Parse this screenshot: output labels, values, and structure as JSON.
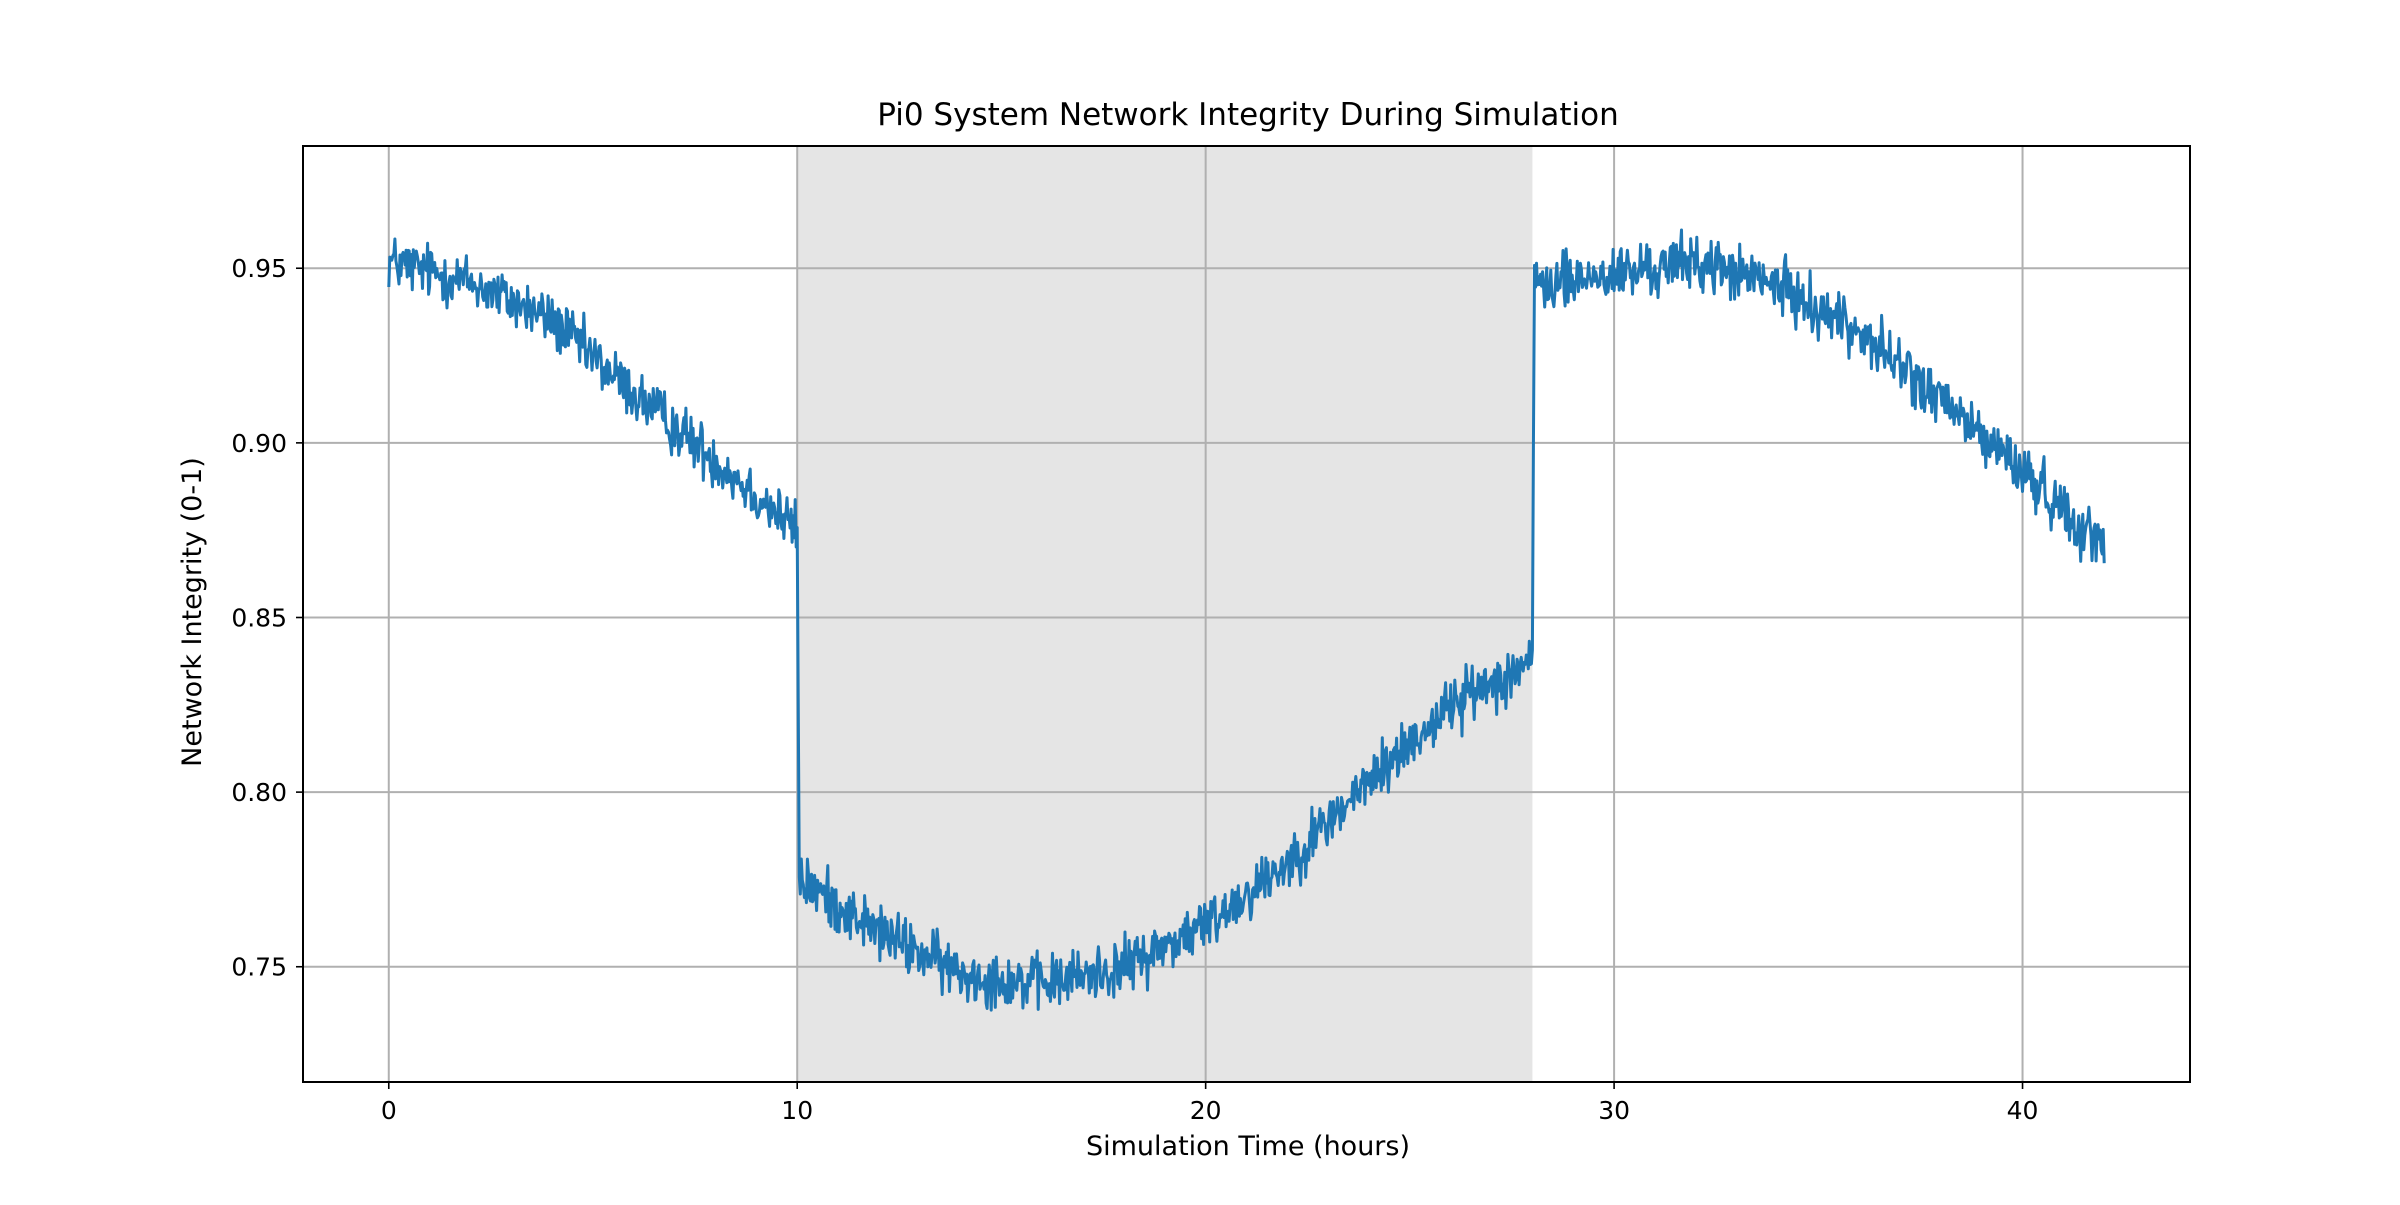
{
  "chart_data": {
    "type": "line",
    "title": "Pi0 System Network Integrity During Simulation",
    "xlabel": "Simulation Time (hours)",
    "ylabel": "Network Integrity (0-1)",
    "xlim": [
      -2.1,
      44.1
    ],
    "ylim": [
      0.717,
      0.985
    ],
    "xticks": [
      0,
      10,
      20,
      30,
      40
    ],
    "yticks": [
      0.75,
      0.8,
      0.85,
      0.9,
      0.95
    ],
    "xtick_labels": [
      "0",
      "10",
      "20",
      "30",
      "40"
    ],
    "ytick_labels": [
      "0.75",
      "0.80",
      "0.85",
      "0.90",
      "0.95"
    ],
    "grid": true,
    "shaded_region": {
      "x_start": 10,
      "x_end": 28,
      "color": "#e5e5e5"
    },
    "series": [
      {
        "color": "#1f77b4",
        "noise_amplitude": 0.008,
        "trend": [
          [
            0,
            0.952
          ],
          [
            2,
            0.946
          ],
          [
            4,
            0.935
          ],
          [
            6,
            0.914
          ],
          [
            8,
            0.895
          ],
          [
            9.5,
            0.88
          ],
          [
            10,
            0.875
          ],
          [
            10.05,
            0.775
          ],
          [
            12,
            0.76
          ],
          [
            14,
            0.748
          ],
          [
            16,
            0.745
          ],
          [
            18,
            0.75
          ],
          [
            20,
            0.762
          ],
          [
            22,
            0.78
          ],
          [
            24,
            0.803
          ],
          [
            26,
            0.825
          ],
          [
            28,
            0.838
          ],
          [
            28.05,
            0.945
          ],
          [
            30,
            0.948
          ],
          [
            32,
            0.952
          ],
          [
            34,
            0.945
          ],
          [
            36,
            0.932
          ],
          [
            38,
            0.912
          ],
          [
            40,
            0.892
          ],
          [
            42,
            0.87
          ]
        ]
      }
    ]
  }
}
